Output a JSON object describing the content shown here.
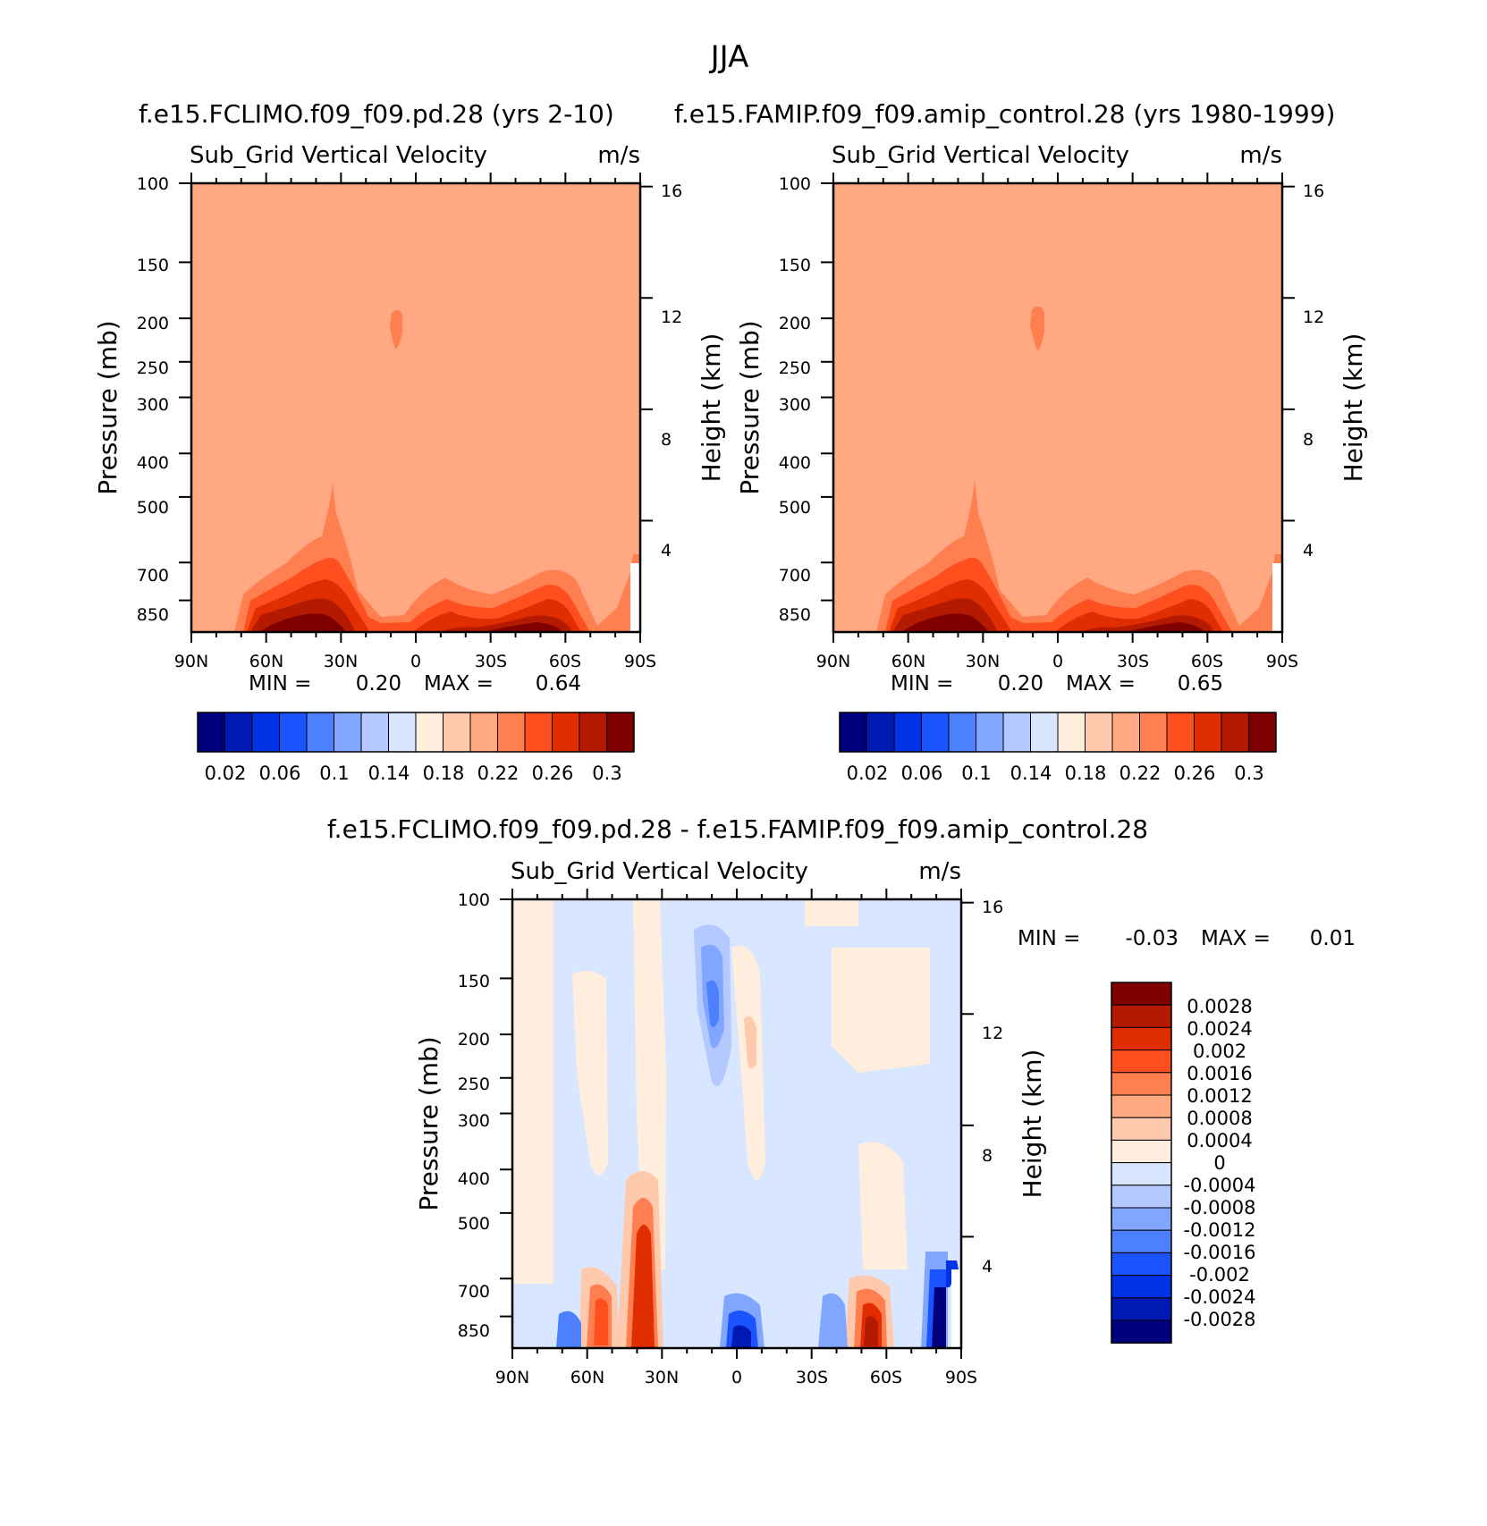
{
  "figure_title": "JJA",
  "chart_data": [
    {
      "type": "heatmap",
      "title": "f.e15.FCLIMO.f09_f09.pd.28 (yrs 2-10)",
      "subtitle_left": "Sub_Grid Vertical Velocity",
      "units": "m/s",
      "ylabel": "Pressure (mb)",
      "y2label": "Height (km)",
      "x_ticks": [
        "90N",
        "60N",
        "30N",
        "0",
        "30S",
        "60S",
        "90S"
      ],
      "y_ticks": [
        "100",
        "150",
        "200",
        "250",
        "300",
        "400",
        "500",
        "700",
        "850"
      ],
      "y_tick_values": [
        100,
        150,
        200,
        250,
        300,
        400,
        500,
        700,
        850
      ],
      "y2_ticks": [
        "16",
        "12",
        "8",
        "4"
      ],
      "y2_tick_values": [
        16,
        12,
        8,
        4
      ],
      "xlim": [
        90,
        -90
      ],
      "ylim": [
        100,
        1000
      ],
      "min_label": "MIN =",
      "min_value": "0.20",
      "max_label": "MAX =",
      "max_value": "0.64",
      "colorbar_labels": [
        "0.02",
        "0.06",
        "0.1",
        "0.14",
        "0.18",
        "0.22",
        "0.26",
        "0.3"
      ],
      "levels": [
        0.02,
        0.04,
        0.06,
        0.08,
        0.1,
        0.12,
        0.14,
        0.16,
        0.18,
        0.2,
        0.22,
        0.24,
        0.26,
        0.28,
        0.3
      ]
    },
    {
      "type": "heatmap",
      "title": "f.e15.FAMIP.f09_f09.amip_control.28 (yrs 1980-1999)",
      "subtitle_left": "Sub_Grid Vertical Velocity",
      "units": "m/s",
      "ylabel": "Pressure (mb)",
      "y2label": "Height (km)",
      "x_ticks": [
        "90N",
        "60N",
        "30N",
        "0",
        "30S",
        "60S",
        "90S"
      ],
      "y_ticks": [
        "100",
        "150",
        "200",
        "250",
        "300",
        "400",
        "500",
        "700",
        "850"
      ],
      "y_tick_values": [
        100,
        150,
        200,
        250,
        300,
        400,
        500,
        700,
        850
      ],
      "y2_ticks": [
        "16",
        "12",
        "8",
        "4"
      ],
      "y2_tick_values": [
        16,
        12,
        8,
        4
      ],
      "xlim": [
        90,
        -90
      ],
      "ylim": [
        100,
        1000
      ],
      "min_label": "MIN =",
      "min_value": "0.20",
      "max_label": "MAX =",
      "max_value": "0.65",
      "colorbar_labels": [
        "0.02",
        "0.06",
        "0.1",
        "0.14",
        "0.18",
        "0.22",
        "0.26",
        "0.3"
      ],
      "levels": [
        0.02,
        0.04,
        0.06,
        0.08,
        0.1,
        0.12,
        0.14,
        0.16,
        0.18,
        0.2,
        0.22,
        0.24,
        0.26,
        0.28,
        0.3
      ]
    },
    {
      "type": "heatmap",
      "title": "f.e15.FCLIMO.f09_f09.pd.28 - f.e15.FAMIP.f09_f09.amip_control.28",
      "subtitle_left": "Sub_Grid Vertical Velocity",
      "units": "m/s",
      "ylabel": "Pressure (mb)",
      "y2label": "Height (km)",
      "x_ticks": [
        "90N",
        "60N",
        "30N",
        "0",
        "30S",
        "60S",
        "90S"
      ],
      "y_ticks": [
        "100",
        "150",
        "200",
        "250",
        "300",
        "400",
        "500",
        "700",
        "850"
      ],
      "y_tick_values": [
        100,
        150,
        200,
        250,
        300,
        400,
        500,
        700,
        850
      ],
      "y2_ticks": [
        "16",
        "12",
        "8",
        "4"
      ],
      "y2_tick_values": [
        16,
        12,
        8,
        4
      ],
      "xlim": [
        90,
        -90
      ],
      "ylim": [
        100,
        1000
      ],
      "min_label": "MIN =",
      "min_value": "-0.03",
      "max_label": "MAX =",
      "max_value": "0.01",
      "colorbar_labels": [
        "0.0028",
        "0.0024",
        "0.002",
        "0.0016",
        "0.0012",
        "0.0008",
        "0.0004",
        "0",
        "-0.0004",
        "-0.0008",
        "-0.0012",
        "-0.0016",
        "-0.002",
        "-0.0024",
        "-0.0028"
      ]
    }
  ],
  "colors": {
    "blue_red_16": [
      "#00007f",
      "#0019b3",
      "#0033e6",
      "#1a53ff",
      "#4d80ff",
      "#80a6ff",
      "#b3c9ff",
      "#d9e6ff",
      "#ffeedd",
      "#ffc9ad",
      "#ffa882",
      "#ff7f50",
      "#ff4f1f",
      "#e02e00",
      "#b31a00",
      "#800000"
    ]
  }
}
